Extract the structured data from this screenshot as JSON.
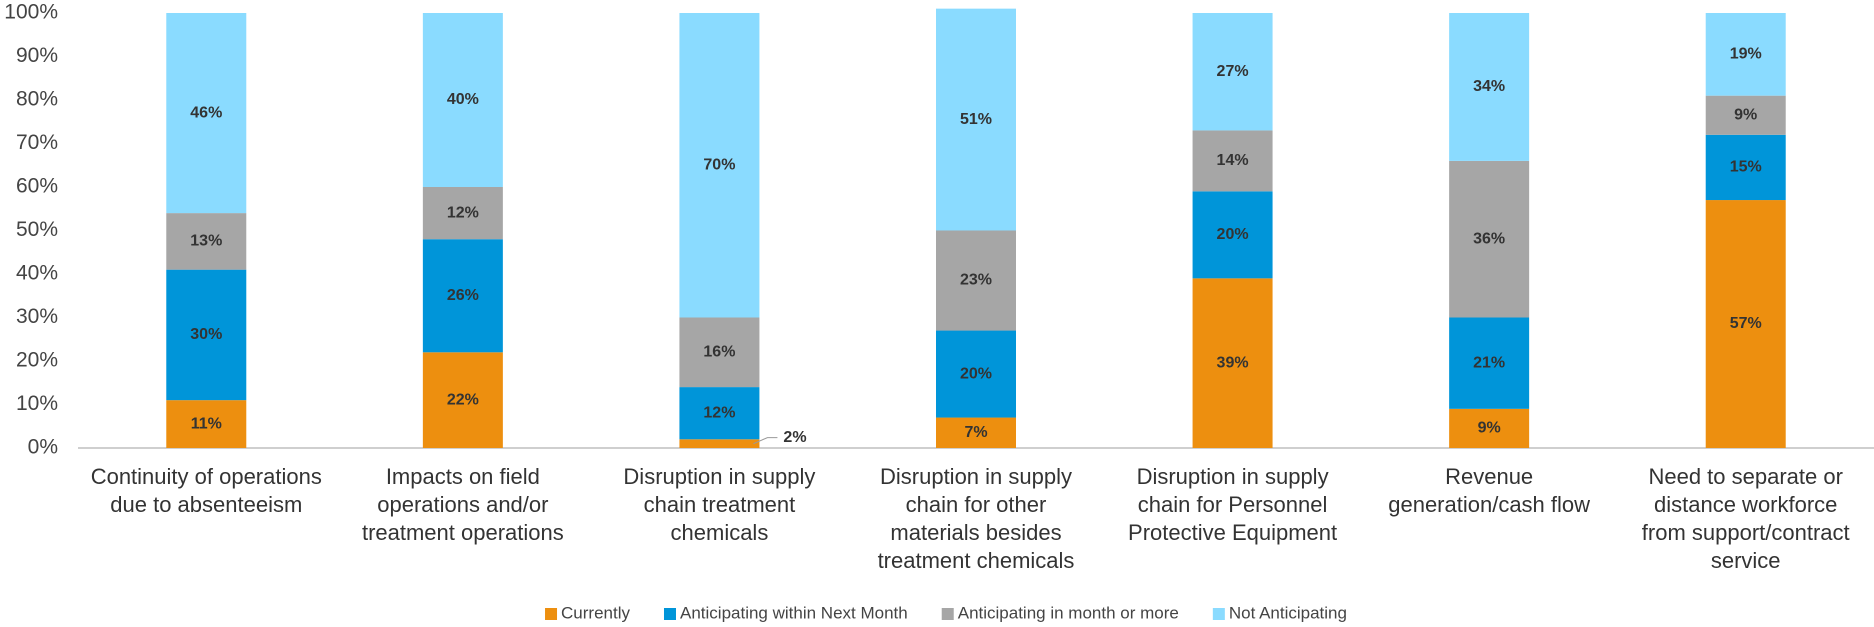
{
  "chart_data": {
    "type": "stacked_bar",
    "categories": [
      "Continuity of operations due to absenteeism",
      "Impacts on field operations and/or treatment operations",
      "Disruption in supply chain treatment chemicals",
      "Disruption in supply chain for other materials besides treatment chemicals",
      "Disruption in supply chain for Personnel Protective Equipment",
      "Revenue generation/cash flow",
      "Need to separate or distance workforce from support/contract service"
    ],
    "series": [
      {
        "name": "Currently",
        "color": "#ED8F0F",
        "values": [
          11,
          22,
          2,
          7,
          39,
          9,
          57
        ],
        "value_labels": [
          "11%",
          "22%",
          "2%",
          "7%",
          "39%",
          "9%",
          "57%"
        ]
      },
      {
        "name": "Anticipating within Next Month",
        "color": "#0095D9",
        "values": [
          30,
          26,
          12,
          20,
          20,
          21,
          15
        ],
        "value_labels": [
          "30%",
          "26%",
          "12%",
          "20%",
          "20%",
          "21%",
          "15%"
        ]
      },
      {
        "name": "Anticipating in month or more",
        "color": "#A6A6A6",
        "values": [
          13,
          12,
          16,
          23,
          14,
          36,
          9
        ],
        "value_labels": [
          "13%",
          "12%",
          "16%",
          "23%",
          "14%",
          "36%",
          "9%"
        ]
      },
      {
        "name": "Not Anticipating",
        "color": "#8ADBFF",
        "values": [
          46,
          40,
          70,
          51,
          27,
          34,
          19
        ],
        "value_labels": [
          "46%",
          "40%",
          "70%",
          "51%",
          "27%",
          "34%",
          "19%"
        ]
      }
    ],
    "ylim": [
      0,
      100
    ],
    "yticks": [
      {
        "value": 0,
        "label": "0%"
      },
      {
        "value": 10,
        "label": "10%"
      },
      {
        "value": 20,
        "label": "20%"
      },
      {
        "value": 30,
        "label": "30%"
      },
      {
        "value": 40,
        "label": "40%"
      },
      {
        "value": 50,
        "label": "50%"
      },
      {
        "value": 60,
        "label": "60%"
      },
      {
        "value": 70,
        "label": "70%"
      },
      {
        "value": 80,
        "label": "80%"
      },
      {
        "value": 90,
        "label": "90%"
      },
      {
        "value": 100,
        "label": "100%"
      }
    ],
    "legend": "bottom"
  }
}
